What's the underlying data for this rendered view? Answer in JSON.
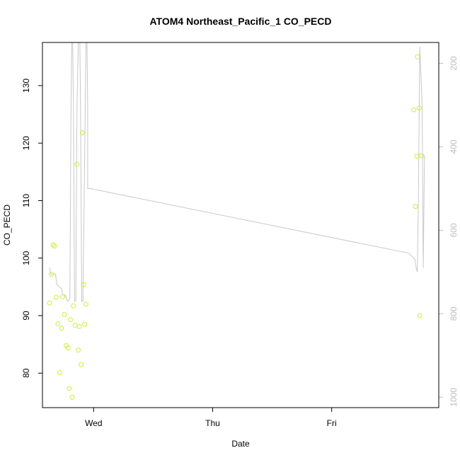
{
  "chart_data": {
    "type": "scatter",
    "title": "ATOM4 Northeast_Pacific_1 CO_PECD",
    "xlabel": "Date",
    "ylabel": "CO_PECD",
    "xlim": [
      -0.43,
      2.9
    ],
    "ylim": [
      74,
      137.5
    ],
    "x_ticks": [
      {
        "value": 0,
        "label": "Wed"
      },
      {
        "value": 1,
        "label": "Thu"
      },
      {
        "value": 2,
        "label": "Fri"
      }
    ],
    "y_ticks": [
      80,
      90,
      100,
      110,
      120,
      130
    ],
    "right_axis": {
      "range": [
        1025,
        150
      ],
      "ticks": [
        200,
        400,
        600,
        800,
        1000
      ],
      "color": "#bdbdbd"
    },
    "grid": false,
    "colors": {
      "points": "#c8f03c",
      "pressure_line": "#c8c8c8",
      "frame": "#000000"
    },
    "series": [
      {
        "type": "scatter",
        "x": [
          -0.37,
          -0.355,
          -0.34,
          -0.33,
          -0.315,
          -0.3,
          -0.285,
          -0.27,
          -0.26,
          -0.245,
          -0.23,
          -0.215,
          -0.205,
          -0.195,
          -0.18,
          -0.17,
          -0.155,
          -0.14,
          -0.13,
          -0.12,
          -0.105,
          -0.095,
          -0.085,
          -0.075,
          -0.065,
          2.69,
          2.705,
          2.715,
          2.72,
          2.735,
          2.74,
          2.755
        ],
        "y": [
          92.2,
          97.2,
          102.3,
          102.1,
          93.2,
          88.6,
          80.1,
          87.8,
          93.3,
          90.2,
          84.8,
          84.4,
          77.3,
          89.3,
          75.8,
          91.7,
          88.3,
          116.3,
          84.0,
          88.1,
          81.5,
          121.8,
          95.4,
          88.5,
          92.0,
          125.8,
          109.0,
          117.7,
          135.0,
          126.1,
          90.0,
          117.8
        ]
      },
      {
        "type": "line",
        "axis": "right",
        "x": [
          -0.37,
          -0.36,
          -0.34,
          -0.32,
          -0.31,
          -0.29,
          -0.27,
          -0.26,
          -0.24,
          -0.22,
          -0.2,
          -0.19,
          -0.18,
          -0.17,
          -0.16,
          -0.15,
          -0.14,
          -0.12,
          -0.11,
          -0.1,
          -0.09,
          -0.07,
          -0.06,
          -0.05,
          -0.05,
          -0.03,
          2.65,
          2.7,
          2.71,
          2.72,
          2.73,
          2.74,
          2.76,
          2.77,
          2.78
        ],
        "y": [
          690,
          705,
          705,
          705,
          730,
          735,
          740,
          755,
          755,
          770,
          765,
          300,
          40,
          300,
          770,
          770,
          300,
          40,
          300,
          770,
          770,
          300,
          40,
          300,
          500,
          500,
          655,
          670,
          690,
          700,
          500,
          160,
          300,
          690,
          420
        ]
      }
    ]
  }
}
